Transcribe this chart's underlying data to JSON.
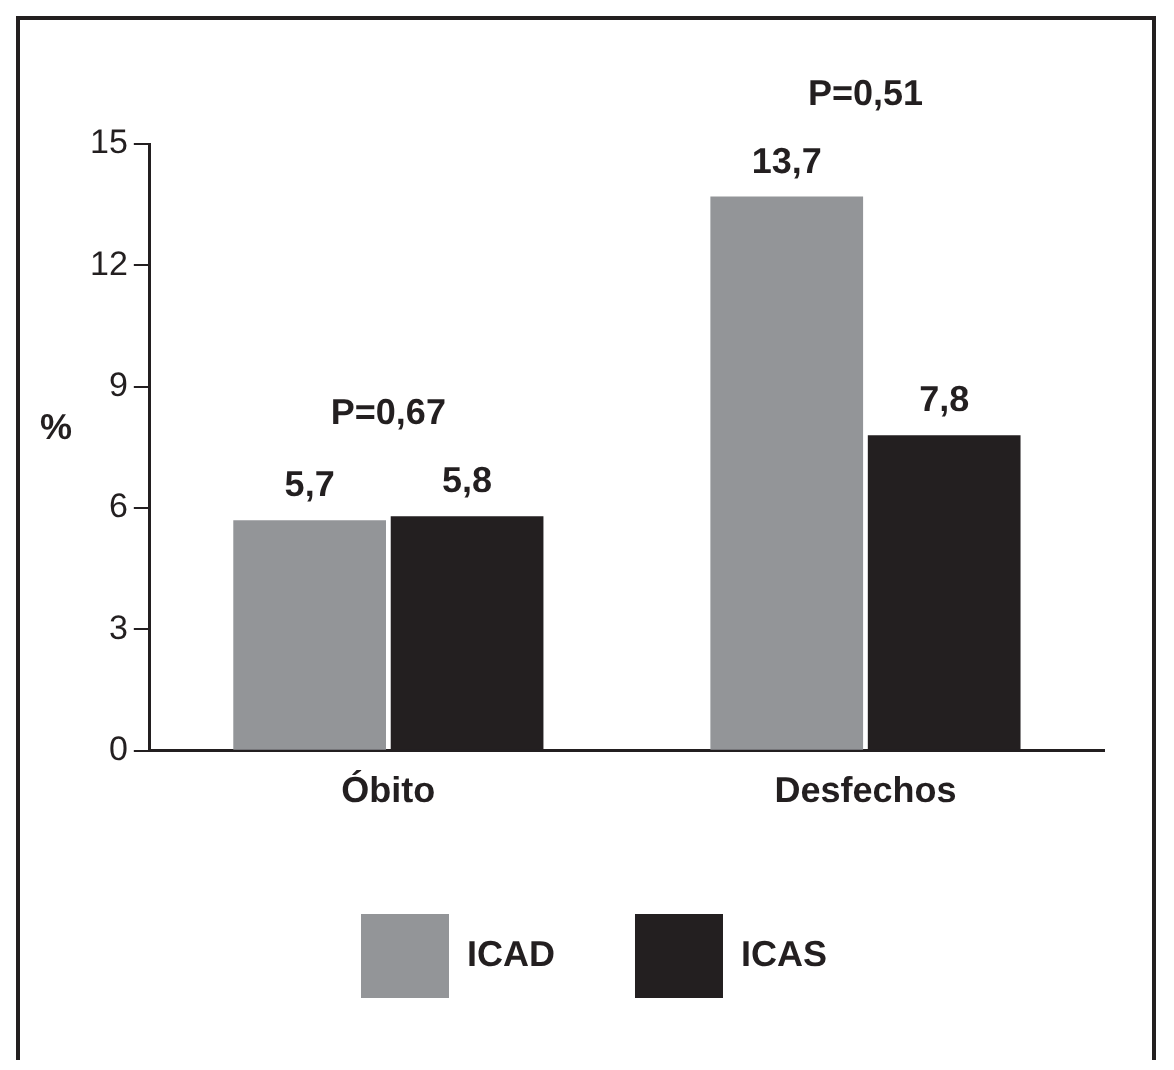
{
  "chart_data": {
    "type": "bar",
    "ylabel": "%",
    "categories": [
      "Óbito",
      "Desfechos"
    ],
    "series": [
      {
        "name": "ICAD",
        "color": "#939598",
        "values": [
          5.7,
          13.7
        ],
        "value_labels": [
          "5,7",
          "13,7"
        ]
      },
      {
        "name": "ICAS",
        "color": "#231f20",
        "values": [
          5.8,
          7.8
        ],
        "value_labels": [
          "5,8",
          "7,8"
        ]
      }
    ],
    "annotations": [
      "P=0,67",
      "P=0,51"
    ],
    "ylim": [
      0,
      15
    ],
    "yticks": [
      0,
      3,
      6,
      9,
      12,
      15
    ],
    "grid": false,
    "legend": "bottom"
  }
}
